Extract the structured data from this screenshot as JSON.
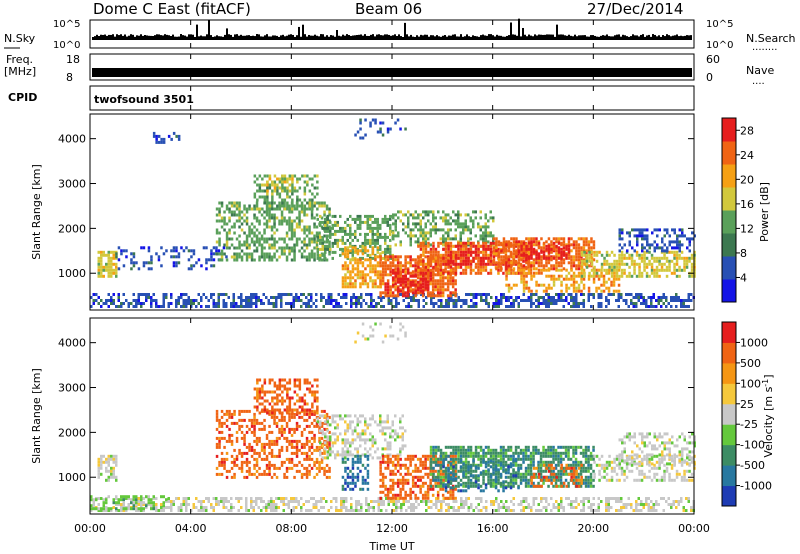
{
  "header": {
    "title": "Dome C East (fitACF)",
    "beam": "Beam 06",
    "date": "27/Dec/2014"
  },
  "strips": {
    "nsky_label": "N.Sky",
    "nsky_top": "10^5",
    "nsky_bottom": "10^0",
    "nsearch_label": "N.Search",
    "nsearch_dots": "........",
    "freq_label": "Freq.",
    "freq_unit": "[MHz]",
    "freq_top": "18",
    "freq_bottom": "8",
    "nave_label": "Nave",
    "nave_dots": "....",
    "nave_top": "60",
    "nave_bottom": "0",
    "cpid_label": "CPID",
    "cpid_value": "twofsound 3501"
  },
  "chart_data": [
    {
      "type": "heatmap",
      "panel": "power",
      "ylabel": "Slant Range [km]",
      "xlabel": "",
      "y_ticks": [
        "1000",
        "2000",
        "3000",
        "4000"
      ],
      "ylim": [
        180,
        4550
      ],
      "x_ticks": [
        "00:00",
        "04:00",
        "08:00",
        "12:00",
        "16:00",
        "20:00",
        "00:00"
      ],
      "xlim": [
        0,
        24
      ],
      "colorbar": {
        "label": "Power [dB]",
        "ticks": [
          "4",
          "8",
          "12",
          "16",
          "20",
          "24",
          "28"
        ],
        "range": [
          0,
          30
        ],
        "colors": [
          "#1414e6",
          "#2850b4",
          "#3c7850",
          "#5aa05a",
          "#d2c83c",
          "#f5a014",
          "#f06414",
          "#e61e1e"
        ]
      },
      "regions": [
        {
          "t": [
            0.0,
            24.0
          ],
          "r": [
            230,
            560
          ],
          "level": 1,
          "density": 0.55
        },
        {
          "t": [
            0.3,
            1.0
          ],
          "r": [
            900,
            1500
          ],
          "level": 4,
          "density": 0.7
        },
        {
          "t": [
            1.0,
            5.5
          ],
          "r": [
            1100,
            1600
          ],
          "level": 1,
          "density": 0.25
        },
        {
          "t": [
            2.5,
            3.5
          ],
          "r": [
            3900,
            4150
          ],
          "level": 1,
          "density": 0.4
        },
        {
          "t": [
            5.0,
            9.5
          ],
          "r": [
            1300,
            2600
          ],
          "level": 3,
          "density": 0.5
        },
        {
          "t": [
            6.5,
            9.0
          ],
          "r": [
            2400,
            3200
          ],
          "level": 3,
          "density": 0.5
        },
        {
          "t": [
            7.0,
            8.0
          ],
          "r": [
            2800,
            3200
          ],
          "level": 4,
          "density": 0.5
        },
        {
          "t": [
            9.0,
            12.0
          ],
          "r": [
            1300,
            2300
          ],
          "level": 3,
          "density": 0.55
        },
        {
          "t": [
            10.0,
            11.5
          ],
          "r": [
            700,
            1600
          ],
          "level": 5,
          "density": 0.6
        },
        {
          "t": [
            11.5,
            14.5
          ],
          "r": [
            500,
            1400
          ],
          "level": 6,
          "density": 0.7
        },
        {
          "t": [
            12.0,
            13.5
          ],
          "r": [
            600,
            1100
          ],
          "level": 7,
          "density": 0.6
        },
        {
          "t": [
            12.0,
            16.0
          ],
          "r": [
            1600,
            2400
          ],
          "level": 3,
          "density": 0.45
        },
        {
          "t": [
            13.0,
            17.5
          ],
          "r": [
            1000,
            1700
          ],
          "level": 6,
          "density": 0.7
        },
        {
          "t": [
            14.0,
            16.0
          ],
          "r": [
            1200,
            1700
          ],
          "level": 7,
          "density": 0.5
        },
        {
          "t": [
            16.0,
            20.0
          ],
          "r": [
            1100,
            1800
          ],
          "level": 6,
          "density": 0.65
        },
        {
          "t": [
            17.0,
            19.0
          ],
          "r": [
            1300,
            1700
          ],
          "level": 7,
          "density": 0.5
        },
        {
          "t": [
            16.5,
            21.0
          ],
          "r": [
            600,
            1100
          ],
          "level": 5,
          "density": 0.4
        },
        {
          "t": [
            19.5,
            24.0
          ],
          "r": [
            900,
            1500
          ],
          "level": 4,
          "density": 0.6
        },
        {
          "t": [
            21.0,
            24.0
          ],
          "r": [
            1500,
            2000
          ],
          "level": 1,
          "density": 0.4
        },
        {
          "t": [
            10.5,
            12.5
          ],
          "r": [
            4000,
            4450
          ],
          "level": 1,
          "density": 0.2
        }
      ]
    },
    {
      "type": "heatmap",
      "panel": "velocity",
      "ylabel": "Slant Range [km]",
      "xlabel": "Time UT",
      "y_ticks": [
        "1000",
        "2000",
        "3000",
        "4000"
      ],
      "ylim": [
        180,
        4550
      ],
      "x_ticks": [
        "00:00",
        "04:00",
        "08:00",
        "12:00",
        "16:00",
        "20:00",
        "00:00"
      ],
      "xlim": [
        0,
        24
      ],
      "colorbar": {
        "label": "Velocity [m s^-1]",
        "ticks": [
          "1000",
          "500",
          "100",
          "25",
          "-25",
          "-100",
          "-500",
          "-1000"
        ],
        "colors": [
          "#1e3cb4",
          "#2878a0",
          "#3c8c64",
          "#64c83c",
          "#c8c8c8",
          "#f5c83c",
          "#f59614",
          "#f06414",
          "#e61e1e"
        ]
      },
      "regions": [
        {
          "t": [
            0.0,
            24.0
          ],
          "r": [
            230,
            560
          ],
          "level": 4,
          "density": 0.5
        },
        {
          "t": [
            0.0,
            3.0
          ],
          "r": [
            300,
            600
          ],
          "level": 3,
          "density": 0.5
        },
        {
          "t": [
            0.3,
            1.0
          ],
          "r": [
            900,
            1500
          ],
          "level": 4,
          "density": 0.6
        },
        {
          "t": [
            5.0,
            9.5
          ],
          "r": [
            1000,
            2500
          ],
          "level": 7,
          "density": 0.45
        },
        {
          "t": [
            6.5,
            9.0
          ],
          "r": [
            2400,
            3200
          ],
          "level": 7,
          "density": 0.5
        },
        {
          "t": [
            9.0,
            12.5
          ],
          "r": [
            1400,
            2400
          ],
          "level": 4,
          "density": 0.4
        },
        {
          "t": [
            10.0,
            11.0
          ],
          "r": [
            700,
            1500
          ],
          "level": 1,
          "density": 0.5
        },
        {
          "t": [
            11.5,
            14.5
          ],
          "r": [
            500,
            1500
          ],
          "level": 7,
          "density": 0.6
        },
        {
          "t": [
            13.5,
            20.0
          ],
          "r": [
            800,
            1700
          ],
          "level": 2,
          "density": 0.7
        },
        {
          "t": [
            14.0,
            17.0
          ],
          "r": [
            700,
            1400
          ],
          "level": 1,
          "density": 0.35
        },
        {
          "t": [
            17.5,
            19.5
          ],
          "r": [
            800,
            1300
          ],
          "level": 7,
          "density": 0.35
        },
        {
          "t": [
            20.0,
            24.0
          ],
          "r": [
            900,
            1500
          ],
          "level": 4,
          "density": 0.5
        },
        {
          "t": [
            21.0,
            24.0
          ],
          "r": [
            1300,
            2000
          ],
          "level": 4,
          "density": 0.4
        },
        {
          "t": [
            10.5,
            12.5
          ],
          "r": [
            4000,
            4450
          ],
          "level": 4,
          "density": 0.2
        }
      ]
    }
  ]
}
